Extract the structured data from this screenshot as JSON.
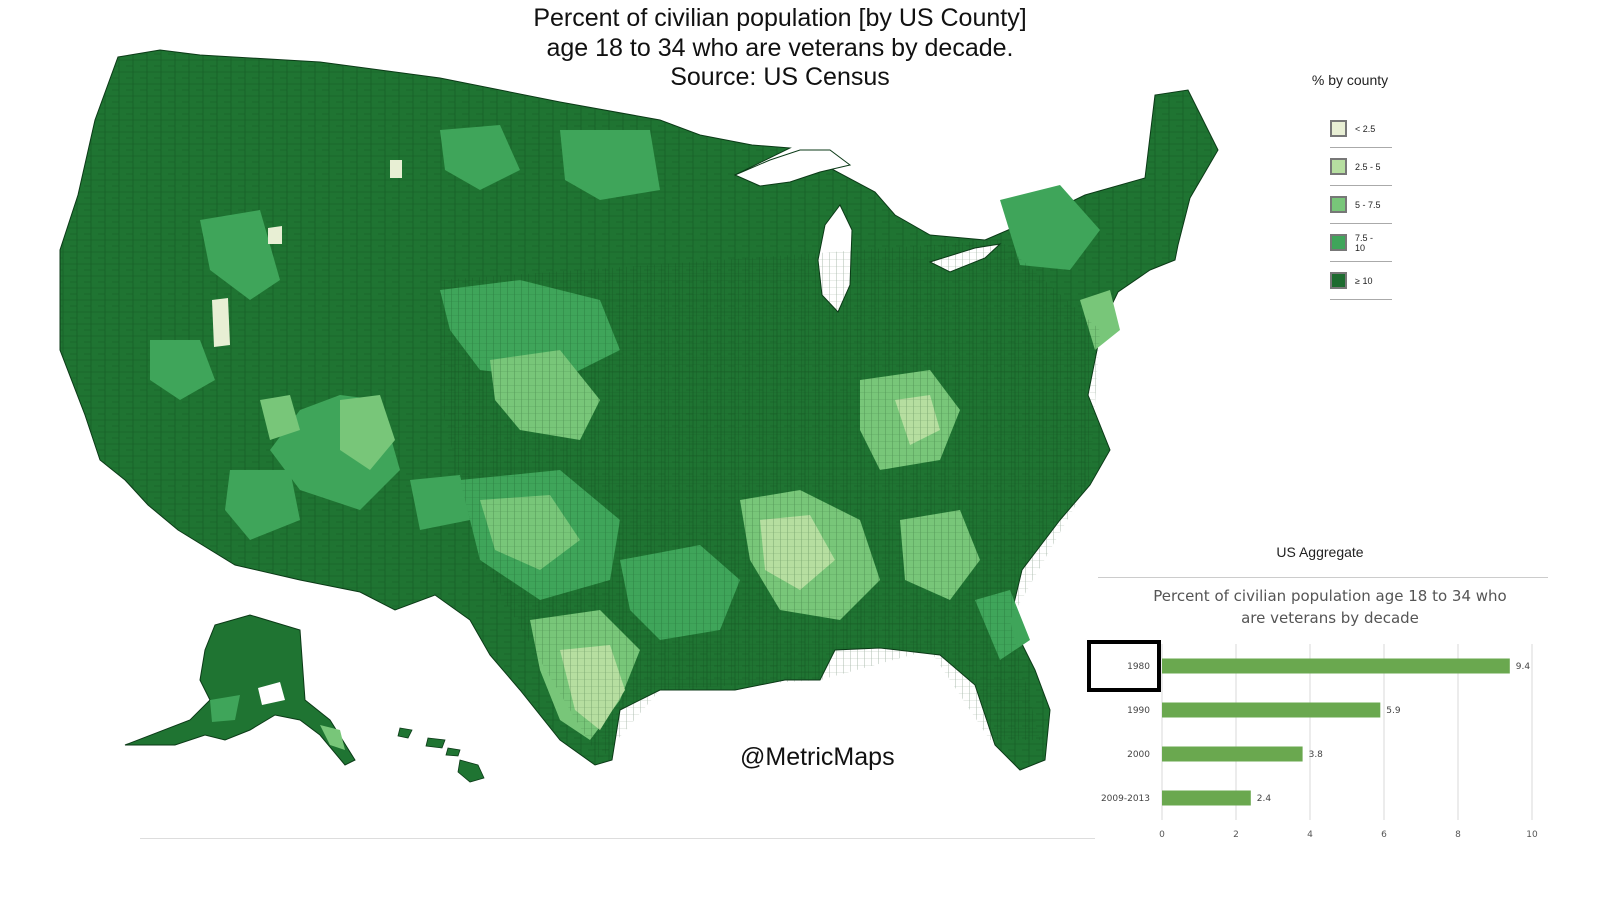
{
  "title": {
    "line1": "Percent of civilian population [by US County]",
    "line2": "age 18 to 34 who are veterans by decade.",
    "line3": "Source: US Census"
  },
  "legend": {
    "title": "% by county",
    "items": [
      {
        "label": "< 2.5",
        "color": "#e8efd4"
      },
      {
        "label": "2.5 - 5",
        "color": "#b6dea0"
      },
      {
        "label": "5 - 7.5",
        "color": "#78c679"
      },
      {
        "label": "7.5 - 10",
        "color": "#3fa55a"
      },
      {
        "label": "≥ 10",
        "color": "#1d6b2f"
      }
    ]
  },
  "map": {
    "shown_decade": "1980",
    "fill_colors": {
      "dominant": "#1f7432",
      "mid": "#3fa55a",
      "light": "#78c679",
      "pale": "#b6dea0",
      "palest": "#e8efd4"
    }
  },
  "aggregate": {
    "heading": "US Aggregate",
    "chart_title_line1": "Percent of civilian population age 18 to 34 who",
    "chart_title_line2": "are veterans by decade"
  },
  "chart_data": {
    "type": "bar",
    "orientation": "horizontal",
    "title": "Percent of civilian population age 18 to 34 who are veterans by decade",
    "categories": [
      "1980",
      "1990",
      "2000",
      "2009-2013"
    ],
    "values": [
      9.4,
      5.9,
      3.8,
      2.4
    ],
    "data_labels": [
      "9.4",
      "5.9",
      "3.8",
      "2.4"
    ],
    "xlim": [
      0,
      10
    ],
    "xticks": [
      "0",
      "2",
      "4",
      "6",
      "8",
      "10"
    ],
    "grid": "vertical",
    "bar_color": "#6aa84f",
    "highlighted_category": "1980"
  },
  "watermark": "@MetricMaps"
}
